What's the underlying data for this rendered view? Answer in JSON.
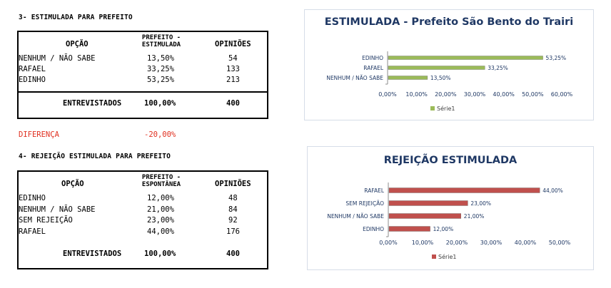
{
  "section3": {
    "title": "3- ESTIMULADA PARA PREFEITO",
    "headers": {
      "option": "OPÇÃO",
      "pct_line1": "PREFEITO -",
      "pct_line2": "ESTIMULADA",
      "count": "OPINIÕES"
    },
    "rows": [
      {
        "option": "NENHUM / NÃO SABE",
        "pct": "13,50%",
        "count": "54"
      },
      {
        "option": "RAFAEL",
        "pct": "33,25%",
        "count": "133"
      },
      {
        "option": "EDINHO",
        "pct": "53,25%",
        "count": "213"
      }
    ],
    "total": {
      "label": "ENTREVISTADOS",
      "pct": "100,00%",
      "count": "400"
    },
    "difference": {
      "label": "DIFERENÇA",
      "value": "-20,00%"
    }
  },
  "section4": {
    "title": "4- REJEIÇÃO ESTIMULADA PARA PREFEITO",
    "headers": {
      "option": "OPÇÃO",
      "pct_line1": "PREFEITO -",
      "pct_line2": "ESPONTÂNEA",
      "count": "OPINIÕES"
    },
    "rows": [
      {
        "option": "EDINHO",
        "pct": "12,00%",
        "count": "48"
      },
      {
        "option": "NENHUM / NÃO SABE",
        "pct": "21,00%",
        "count": "84"
      },
      {
        "option": "SEM REJEIÇÃO",
        "pct": "23,00%",
        "count": "92"
      },
      {
        "option": "RAFAEL",
        "pct": "44,00%",
        "count": "176"
      }
    ],
    "total": {
      "label": "ENTREVISTADOS",
      "pct": "100,00%",
      "count": "400"
    }
  },
  "chart_data": [
    {
      "type": "bar",
      "orientation": "horizontal",
      "title": "ESTIMULADA - Prefeito São Bento do Trairi",
      "categories": [
        "NENHUM / NÃO SABE",
        "RAFAEL",
        "EDINHO"
      ],
      "series": [
        {
          "name": "Série1",
          "values": [
            13.5,
            33.25,
            53.25
          ],
          "labels": [
            "13,50%",
            "33,25%",
            "53,25%"
          ],
          "color": "#9bbb59"
        }
      ],
      "xlim": [
        0,
        60
      ],
      "xticks": [
        "0,00%",
        "10,00%",
        "20,00%",
        "30,00%",
        "40,00%",
        "50,00%",
        "60,00%"
      ],
      "legend": "bottom"
    },
    {
      "type": "bar",
      "orientation": "horizontal",
      "title": "REJEIÇÃO ESTIMULADA",
      "categories": [
        "EDINHO",
        "NENHUM / NÃO SABE",
        "SEM REJEIÇÃO",
        "RAFAEL"
      ],
      "series": [
        {
          "name": "Série1",
          "values": [
            12,
            21,
            23,
            44
          ],
          "labels": [
            "12,00%",
            "21,00%",
            "23,00%",
            "44,00%"
          ],
          "color": "#c0504d"
        }
      ],
      "xlim": [
        0,
        50
      ],
      "xticks": [
        "0,00%",
        "10,00%",
        "20,00%",
        "30,00%",
        "40,00%",
        "50,00%"
      ],
      "legend": "bottom"
    }
  ]
}
